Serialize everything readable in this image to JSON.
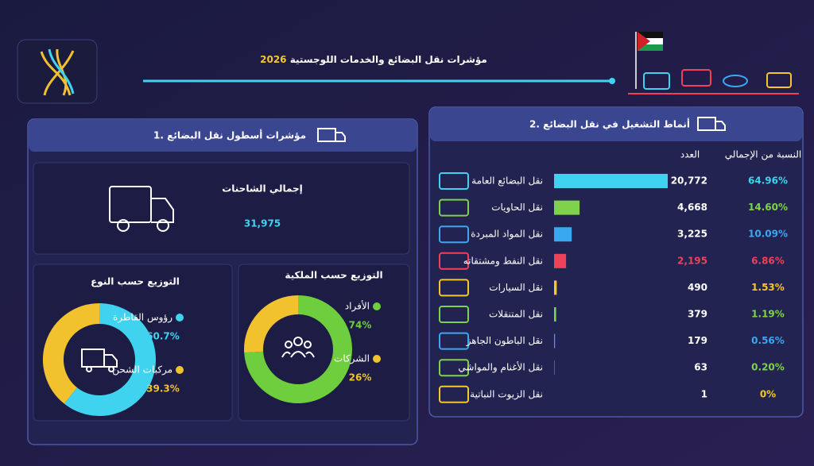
{
  "header": {
    "title": "مؤشرات نقل البضائع والخدمات اللوجستية",
    "year": "2026"
  },
  "fleet": {
    "title": "1. مؤشرات أسطول نقل البضائع",
    "total_label": "إجمالي الشاحنات",
    "total_value": "31,975"
  },
  "chart_data": [
    {
      "type": "bar",
      "title": "2. أنماط التشغيل في نقل البضائع",
      "count_header": "العدد",
      "share_header": "النسبة من الإجمالي",
      "categories": [
        "نقل البضائع العامة",
        "نقل الحاويات",
        "نقل المواد المبردة",
        "نقل النفط ومشتقاته",
        "نقل السيارات",
        "نقل المتنقلات",
        "نقل الباطون الجاهز",
        "نقل الأغنام والمواشي",
        "نقل الزيوت النباتية"
      ],
      "values": [
        20772,
        4668,
        3225,
        2195,
        490,
        379,
        179,
        63,
        1
      ],
      "value_labels": [
        "20,772",
        "4,668",
        "3,225",
        "2,195",
        "490",
        "379",
        "179",
        "63",
        "1"
      ],
      "share_labels": [
        "64.96%",
        "14.60%",
        "10.09%",
        "6.86%",
        "1.53%",
        "1.19%",
        "0.56%",
        "0.20%",
        "0%"
      ],
      "colors": [
        "#3fd3ef",
        "#7fd34a",
        "#3aa8f0",
        "#f0405a",
        "#f5c72c",
        "#7fd34a",
        "#3aa8f0",
        "#7fd34a",
        "#f5c72c"
      ]
    },
    {
      "type": "donut",
      "title": "التوزيع حسب الملكية",
      "categories": [
        "الأفراد",
        "الشركات"
      ],
      "values": [
        74,
        26
      ],
      "value_labels": [
        "74%",
        "26%"
      ],
      "colors": [
        "#6fce3e",
        "#f2c12e"
      ]
    },
    {
      "type": "donut",
      "title": "التوزيع حسب النوع",
      "categories": [
        "رؤوس القاطرة",
        "مركبات الشحن"
      ],
      "values": [
        60.7,
        39.3
      ],
      "value_labels": [
        "60.7%",
        "39.3%"
      ],
      "colors": [
        "#3fd3ef",
        "#f2c12e"
      ]
    }
  ]
}
